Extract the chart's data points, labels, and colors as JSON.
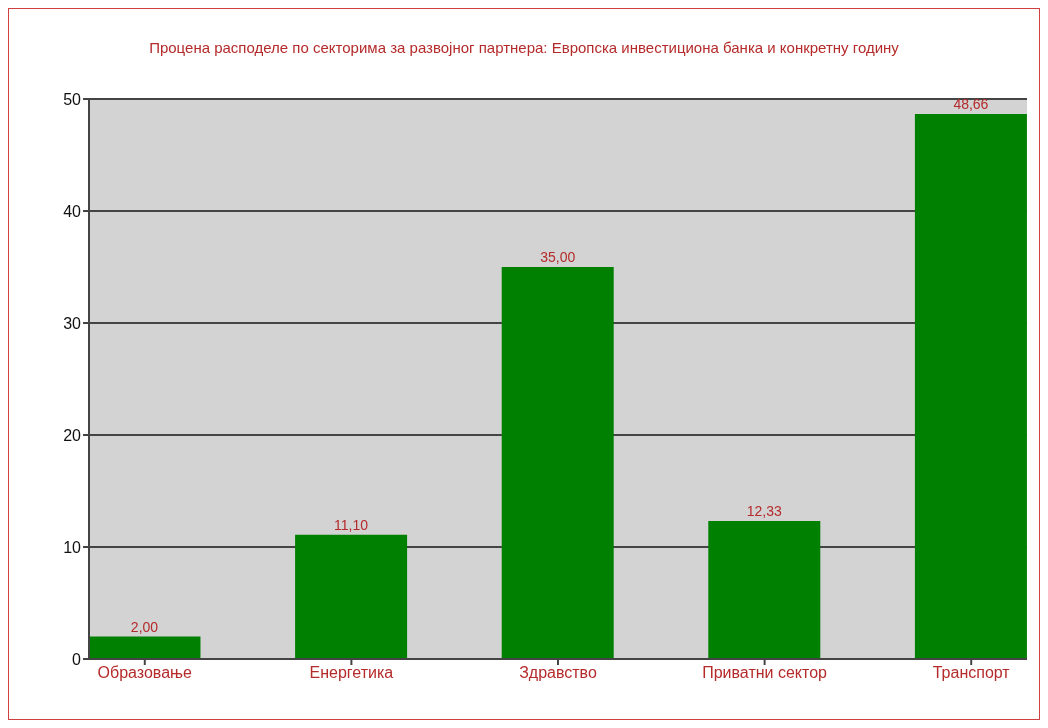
{
  "chart_data": {
    "type": "bar",
    "title": "Процена расподеле по секторима за развојног партнера: Европска инвестициона банка и конкретну годину",
    "categories": [
      "Образовање",
      "Енергетика",
      "Здравство",
      "Приватни сектор",
      "Транспорт"
    ],
    "values": [
      2.0,
      11.1,
      35.0,
      12.33,
      48.66
    ],
    "value_labels": [
      "2,00",
      "11,10",
      "35,00",
      "12,33",
      "48,66"
    ],
    "color": "#008000",
    "ylim": [
      0,
      50
    ],
    "yticks": [
      0,
      10,
      20,
      30,
      40,
      50
    ],
    "grid": "y"
  }
}
